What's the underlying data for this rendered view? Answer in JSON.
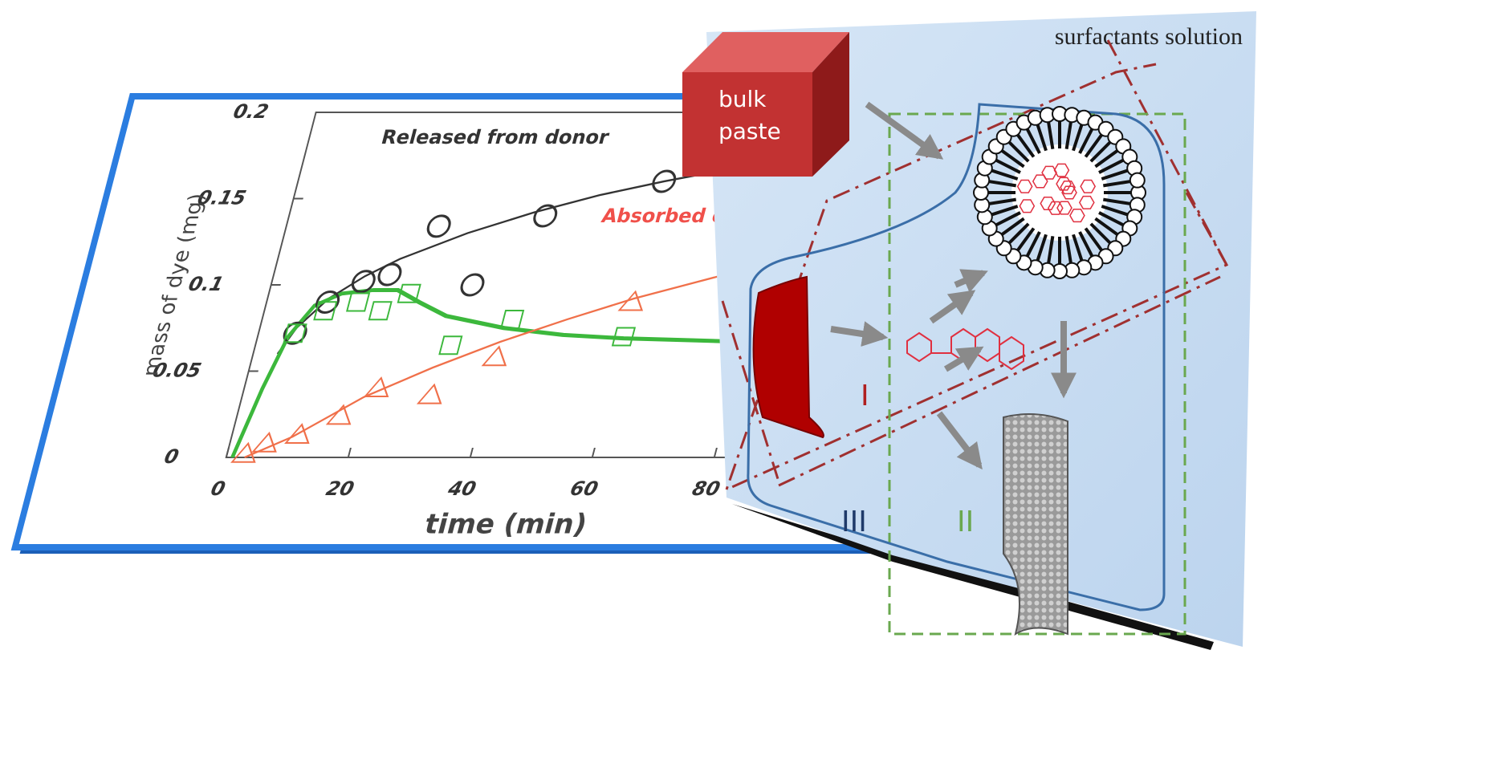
{
  "chart_data": {
    "type": "scatter",
    "xlabel": "time (min)",
    "ylabel": "mass of dye (mg)",
    "xlim": [
      0,
      100
    ],
    "xticks": [
      0,
      20,
      40,
      60,
      80
    ],
    "ylim": [
      0,
      0.2
    ],
    "yticks": [
      0,
      0.05,
      0.1,
      0.15,
      0.2
    ],
    "grid": false,
    "annotations": [
      {
        "text": "Released from  donor",
        "color": "#333333"
      },
      {
        "text": "Absorbed o",
        "color": "#f0504a"
      }
    ],
    "series": [
      {
        "marker": "circle",
        "color": "#333333",
        "x": [
          6,
          10,
          15,
          19,
          25,
          33,
          42,
          60
        ],
        "values": [
          0.072,
          0.09,
          0.102,
          0.106,
          0.134,
          0.1,
          0.14,
          0.16
        ]
      },
      {
        "marker": "square",
        "color": "#3cb83c",
        "x": [
          6,
          10,
          15,
          19,
          23,
          32,
          41,
          60
        ],
        "values": [
          0.072,
          0.085,
          0.09,
          0.085,
          0.095,
          0.065,
          0.08,
          0.07
        ]
      },
      {
        "marker": "triangle",
        "color": "#f0704a",
        "x": [
          3,
          6,
          11,
          17,
          22,
          31,
          40,
          60
        ],
        "values": [
          0.002,
          0.008,
          0.013,
          0.024,
          0.04,
          0.036,
          0.058,
          0.09
        ]
      }
    ],
    "fits": [
      {
        "color": "#333333",
        "x": [
          4,
          6,
          10,
          15,
          20,
          30,
          40,
          50,
          60,
          70,
          80
        ],
        "values": [
          0.06,
          0.075,
          0.092,
          0.105,
          0.115,
          0.13,
          0.142,
          0.152,
          0.16,
          0.167,
          0.172
        ]
      },
      {
        "color": "#3cb83c",
        "x": [
          1,
          3,
          5,
          8,
          12,
          17,
          21,
          25,
          30,
          40,
          50,
          60,
          70,
          80
        ],
        "values": [
          0,
          0.04,
          0.07,
          0.088,
          0.095,
          0.097,
          0.097,
          0.09,
          0.082,
          0.075,
          0.071,
          0.069,
          0.068,
          0.067
        ]
      },
      {
        "color": "#f0704a",
        "x": [
          3,
          10,
          20,
          30,
          40,
          50,
          60,
          70,
          80
        ],
        "values": [
          0,
          0.012,
          0.035,
          0.052,
          0.067,
          0.08,
          0.092,
          0.102,
          0.112
        ]
      }
    ]
  },
  "diagram": {
    "solution_label": "surfactants solution",
    "bulk_label": [
      "bulk",
      "paste"
    ],
    "regions": [
      "I",
      "II",
      "III"
    ]
  }
}
